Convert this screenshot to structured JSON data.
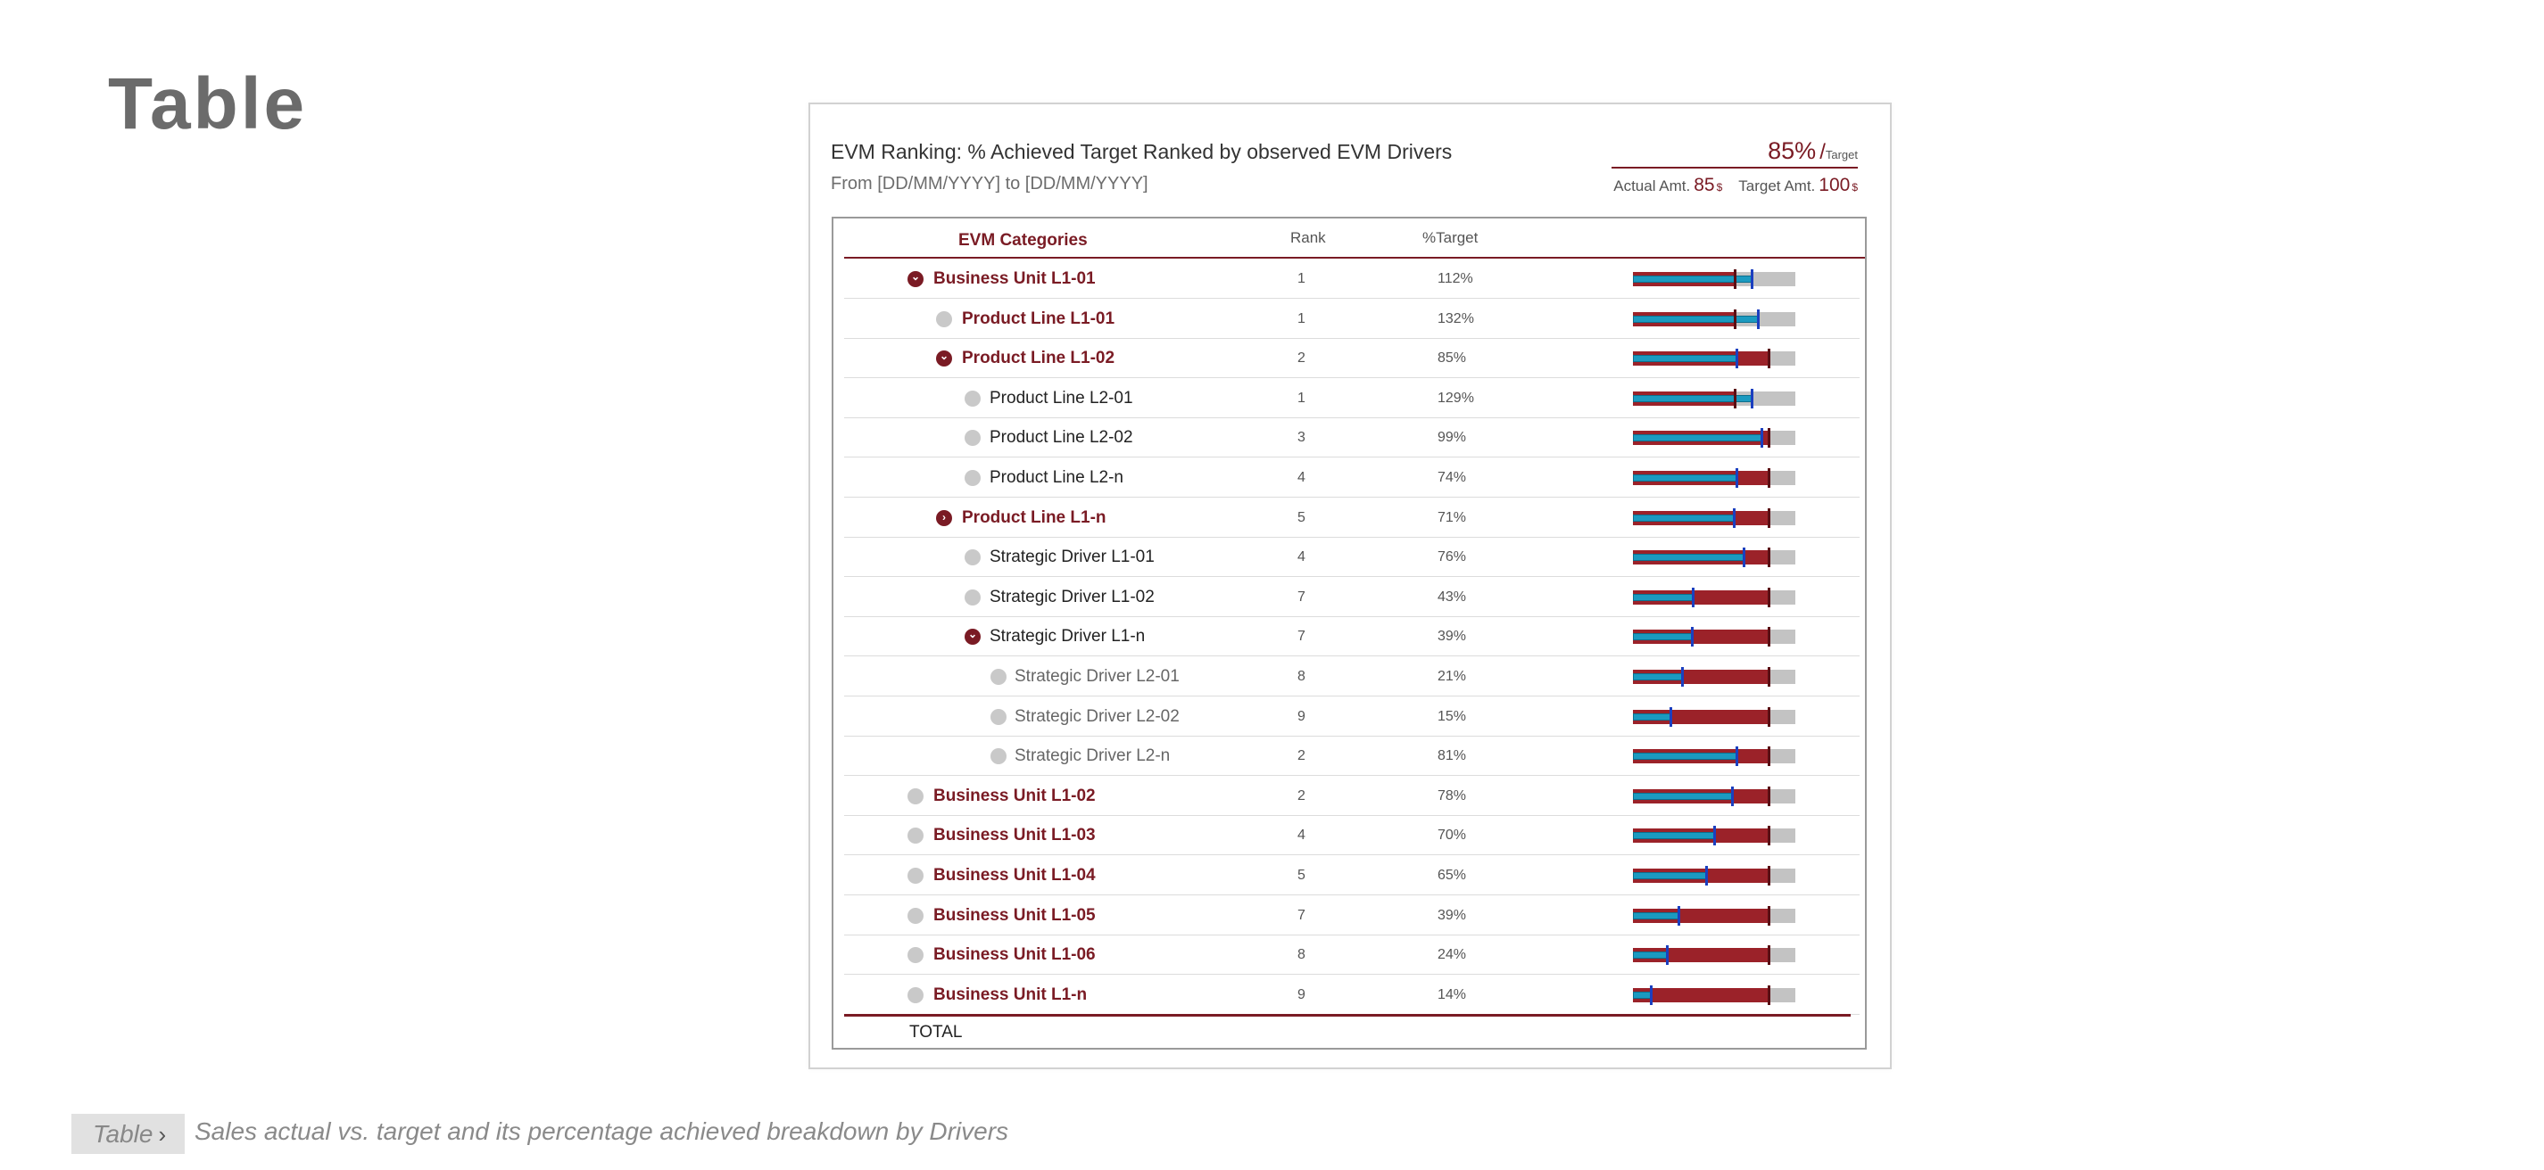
{
  "page": {
    "title": "Table"
  },
  "card": {
    "title": "EVM Ranking: % Achieved Target Ranked by observed EVM Drivers",
    "subtitle": "From [DD/MM/YYYY] to [DD/MM/YYYY]"
  },
  "kpi": {
    "value": "85%",
    "slash": "/",
    "label": "Target",
    "actual_label": "Actual Amt.",
    "actual_value": "85",
    "actual_unit": "$",
    "target_label": "Target Amt.",
    "target_value": "100",
    "target_unit": "$"
  },
  "table": {
    "headers": {
      "category": "EVM Categories",
      "rank": "Rank",
      "target": "%Target"
    },
    "rows": [
      {
        "label": "Business Unit L1-01",
        "level": 0,
        "state": "expanded",
        "rank": "1",
        "pct": "112%",
        "actual": 0.73,
        "target": 0.63
      },
      {
        "label": "Product Line L1-01",
        "level": 1,
        "state": "leaf",
        "rank": "1",
        "pct": "132%",
        "actual": 0.77,
        "target": 0.63
      },
      {
        "label": "Product Line L1-02",
        "level": 1,
        "state": "expanded",
        "rank": "2",
        "pct": "85%",
        "actual": 0.64,
        "target": 0.84
      },
      {
        "label": "Product Line L2-01",
        "level": 2,
        "state": "leaf",
        "rank": "1",
        "pct": "129%",
        "actual": 0.73,
        "target": 0.63
      },
      {
        "label": "Product Line L2-02",
        "level": 2,
        "state": "leaf",
        "rank": "3",
        "pct": "99%",
        "actual": 0.79,
        "target": 0.84
      },
      {
        "label": "Product Line L2-n",
        "level": 2,
        "state": "leaf",
        "rank": "4",
        "pct": "74%",
        "actual": 0.64,
        "target": 0.84
      },
      {
        "label": "Product Line L1-n",
        "level": 1,
        "state": "collapsed",
        "rank": "5",
        "pct": "71%",
        "actual": 0.62,
        "target": 0.84
      },
      {
        "label": "Strategic Driver L1-01",
        "level": 2,
        "state": "leaf",
        "rank": "4",
        "pct": "76%",
        "actual": 0.68,
        "target": 0.84
      },
      {
        "label": "Strategic Driver L1-02",
        "level": 2,
        "state": "leaf",
        "rank": "7",
        "pct": "43%",
        "actual": 0.37,
        "target": 0.84
      },
      {
        "label": "Strategic Driver L1-n",
        "level": 2,
        "state": "expanded",
        "rank": "7",
        "pct": "39%",
        "actual": 0.36,
        "target": 0.84
      },
      {
        "label": "Strategic Driver L2-01",
        "level": 3,
        "state": "leaf",
        "rank": "8",
        "pct": "21%",
        "actual": 0.3,
        "target": 0.84
      },
      {
        "label": "Strategic Driver L2-02",
        "level": 3,
        "state": "leaf",
        "rank": "9",
        "pct": "15%",
        "actual": 0.23,
        "target": 0.84
      },
      {
        "label": "Strategic Driver L2-n",
        "level": 3,
        "state": "leaf",
        "rank": "2",
        "pct": "81%",
        "actual": 0.64,
        "target": 0.84
      },
      {
        "label": "Business Unit L1-02",
        "level": 0,
        "state": "leaf",
        "rank": "2",
        "pct": "78%",
        "actual": 0.61,
        "target": 0.84
      },
      {
        "label": "Business Unit L1-03",
        "level": 0,
        "state": "leaf",
        "rank": "4",
        "pct": "70%",
        "actual": 0.5,
        "target": 0.84
      },
      {
        "label": "Business Unit L1-04",
        "level": 0,
        "state": "leaf",
        "rank": "5",
        "pct": "65%",
        "actual": 0.45,
        "target": 0.84
      },
      {
        "label": "Business Unit L1-05",
        "level": 0,
        "state": "leaf",
        "rank": "7",
        "pct": "39%",
        "actual": 0.28,
        "target": 0.84
      },
      {
        "label": "Business Unit L1-06",
        "level": 0,
        "state": "leaf",
        "rank": "8",
        "pct": "24%",
        "actual": 0.21,
        "target": 0.84
      },
      {
        "label": "Business Unit L1-n",
        "level": 0,
        "state": "leaf",
        "rank": "9",
        "pct": "14%",
        "actual": 0.11,
        "target": 0.84
      }
    ],
    "total_label": "TOTAL"
  },
  "footer": {
    "tag": "Table",
    "chevron_icon": "chevron-right-icon",
    "caption": "Sales actual vs. target and its percentage achieved breakdown by Drivers"
  },
  "colors": {
    "accent": "#7a1b24",
    "target_fill": "#9b2229",
    "actual_fill": "#1b9ac0",
    "marker_dark": "#5a0f14",
    "marker_blue": "#1b3fbf",
    "track": "#c3c3c3",
    "icon_light": "#c9c9c9"
  }
}
